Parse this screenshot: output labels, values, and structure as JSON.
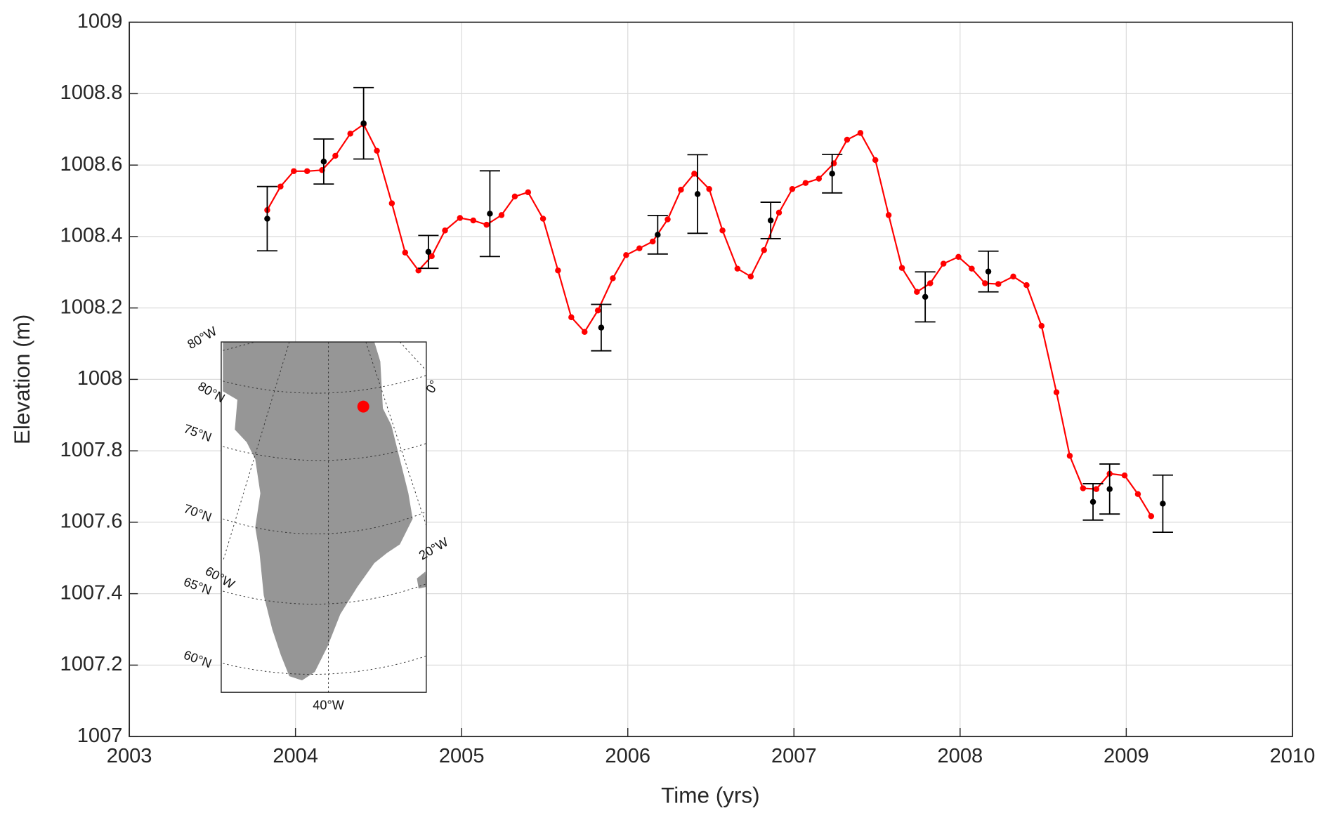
{
  "chart_data": {
    "type": "line",
    "xlabel": "Time (yrs)",
    "ylabel": "Elevation (m)",
    "xlim": [
      2003,
      2010
    ],
    "xticks": [
      2003,
      2004,
      2005,
      2006,
      2007,
      2008,
      2009,
      2010
    ],
    "ylim": [
      1007,
      1009
    ],
    "yticks": [
      1007,
      1007.2,
      1007.4,
      1007.6,
      1007.8,
      1008,
      1008.2,
      1008.4,
      1008.6,
      1008.8,
      1009
    ],
    "grid": true,
    "series": [
      {
        "color": "#ff0000",
        "x": [
          2003.83,
          2003.91,
          2003.99,
          2004.07,
          2004.16,
          2004.24,
          2004.33,
          2004.41,
          2004.49,
          2004.58,
          2004.66,
          2004.74,
          2004.82,
          2004.9,
          2004.99,
          2005.07,
          2005.15,
          2005.24,
          2005.32,
          2005.4,
          2005.49,
          2005.58,
          2005.66,
          2005.74,
          2005.82,
          2005.91,
          2005.99,
          2006.07,
          2006.15,
          2006.24,
          2006.32,
          2006.4,
          2006.49,
          2006.57,
          2006.66,
          2006.74,
          2006.82,
          2006.91,
          2006.99,
          2007.07,
          2007.15,
          2007.24,
          2007.32,
          2007.4,
          2007.49,
          2007.57,
          2007.65,
          2007.74,
          2007.82,
          2007.9,
          2007.99,
          2008.07,
          2008.15,
          2008.23,
          2008.32,
          2008.4,
          2008.49,
          2008.58,
          2008.66,
          2008.74,
          2008.82,
          2008.9,
          2008.99,
          2009.07,
          2009.15
        ],
        "values": [
          1008.474,
          1008.54,
          1008.583,
          1008.583,
          1008.586,
          1008.626,
          1008.688,
          1008.714,
          1008.64,
          1008.493,
          1008.355,
          1008.305,
          1008.345,
          1008.417,
          1008.452,
          1008.445,
          1008.433,
          1008.46,
          1008.512,
          1008.524,
          1008.45,
          1008.305,
          1008.174,
          1008.133,
          1008.193,
          1008.283,
          1008.348,
          1008.367,
          1008.386,
          1008.448,
          1008.531,
          1008.576,
          1008.533,
          1008.417,
          1008.31,
          1008.288,
          1008.362,
          1008.467,
          1008.533,
          1008.55,
          1008.562,
          1008.605,
          1008.671,
          1008.69,
          1008.614,
          1008.46,
          1008.312,
          1008.245,
          1008.269,
          1008.324,
          1008.343,
          1008.31,
          1008.269,
          1008.267,
          1008.288,
          1008.264,
          1008.15,
          1007.964,
          1007.786,
          1007.695,
          1007.693,
          1007.736,
          1007.731,
          1007.679,
          1007.617
        ]
      },
      {
        "color": "#000000",
        "x": [
          2003.83,
          2004.17,
          2004.41,
          2004.8,
          2005.17,
          2005.84,
          2006.18,
          2006.42,
          2006.86,
          2007.23,
          2007.79,
          2008.17,
          2008.8,
          2008.9,
          2009.22
        ],
        "values": [
          1008.45,
          1008.61,
          1008.717,
          1008.357,
          1008.464,
          1008.145,
          1008.405,
          1008.519,
          1008.445,
          1008.576,
          1008.231,
          1008.302,
          1007.657,
          1007.693,
          1007.652
        ],
        "errors": [
          0.09,
          0.063,
          0.1,
          0.046,
          0.12,
          0.065,
          0.054,
          0.11,
          0.051,
          0.054,
          0.07,
          0.057,
          0.051,
          0.07,
          0.08
        ]
      }
    ],
    "map_labels": [
      "80°W",
      "80°N",
      "75°N",
      "70°N",
      "65°N",
      "60°N",
      "60°W",
      "20°W",
      "0°",
      "40°W"
    ]
  }
}
